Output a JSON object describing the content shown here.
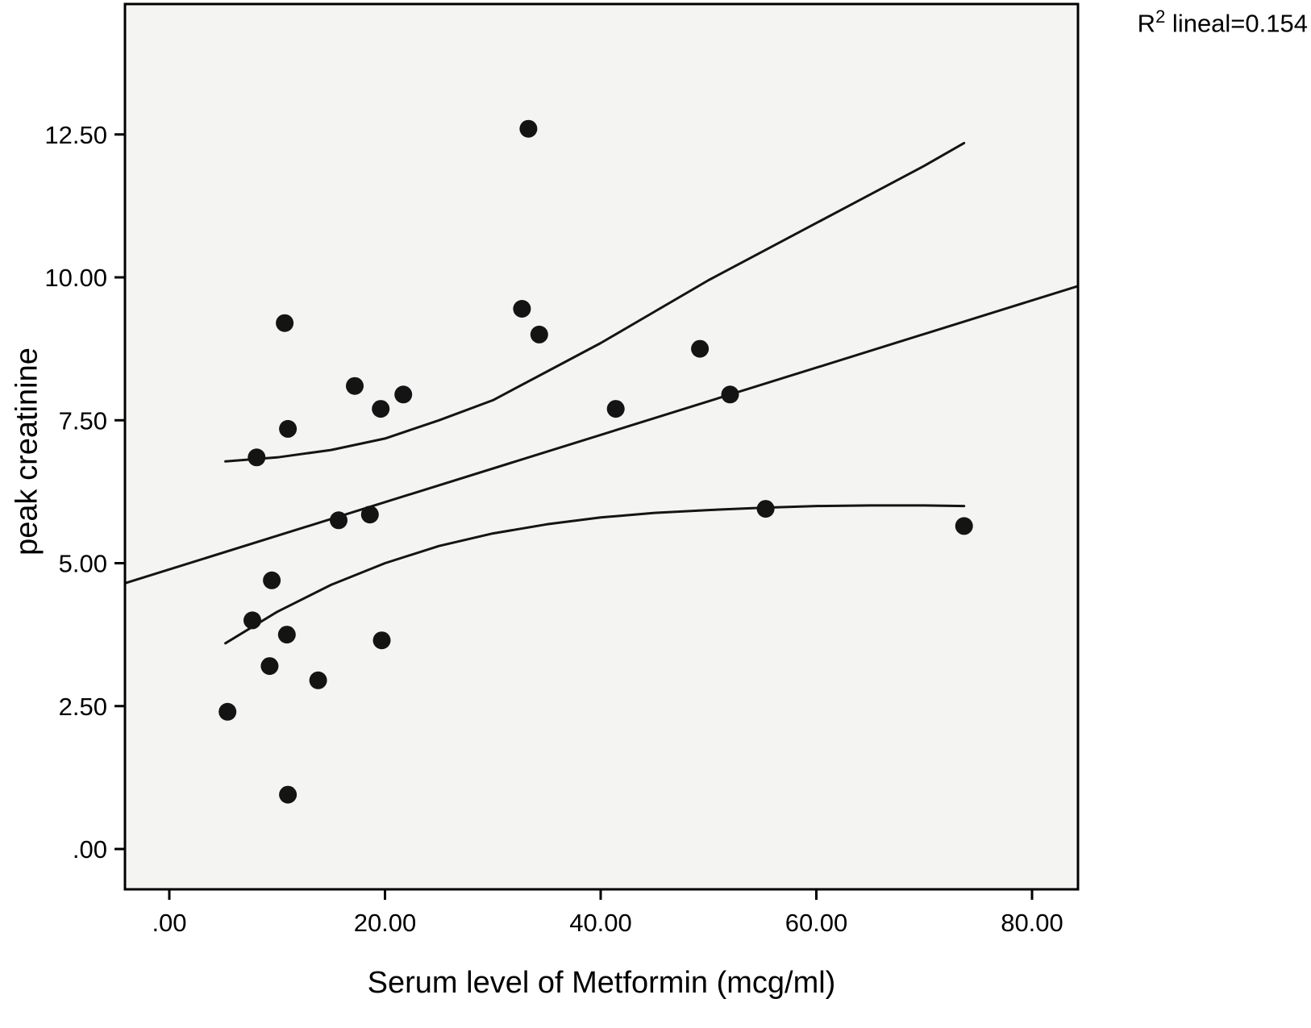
{
  "chart_data": {
    "type": "scatter",
    "xlabel": "Serum level of Metformin  (mcg/ml)",
    "ylabel": "peak creatinine",
    "annotation": {
      "prefix": "R",
      "sup": "2",
      "rest": " lineal=0.154"
    },
    "xlim": [
      -4.1,
      84.3
    ],
    "ylim": [
      -0.7,
      14.8
    ],
    "grid": false,
    "x_ticks": [
      {
        "value": 0,
        "label": ".00"
      },
      {
        "value": 20,
        "label": "20.00"
      },
      {
        "value": 40,
        "label": "40.00"
      },
      {
        "value": 60,
        "label": "60.00"
      },
      {
        "value": 80,
        "label": "80.00"
      }
    ],
    "y_ticks": [
      {
        "value": 12.5,
        "label": "12.50"
      },
      {
        "value": 10.0,
        "label": "10.00"
      },
      {
        "value": 7.5,
        "label": "7.50"
      },
      {
        "value": 5.0,
        "label": "5.00"
      },
      {
        "value": 2.5,
        "label": "2.50"
      },
      {
        "value": 0.0,
        "label": ".00"
      }
    ],
    "points": [
      [
        33.3,
        12.6
      ],
      [
        10.7,
        9.2
      ],
      [
        32.7,
        9.45
      ],
      [
        34.3,
        9.0
      ],
      [
        49.2,
        8.75
      ],
      [
        17.2,
        8.1
      ],
      [
        21.7,
        7.95
      ],
      [
        19.6,
        7.7
      ],
      [
        41.4,
        7.7
      ],
      [
        52.0,
        7.95
      ],
      [
        11.0,
        7.35
      ],
      [
        8.1,
        6.85
      ],
      [
        15.7,
        5.75
      ],
      [
        18.6,
        5.85
      ],
      [
        55.3,
        5.95
      ],
      [
        73.7,
        5.65
      ],
      [
        9.5,
        4.7
      ],
      [
        7.7,
        4.0
      ],
      [
        10.9,
        3.75
      ],
      [
        19.7,
        3.65
      ],
      [
        9.3,
        3.2
      ],
      [
        13.8,
        2.95
      ],
      [
        5.4,
        2.4
      ],
      [
        11.0,
        0.95
      ]
    ],
    "fit_line": {
      "x": [
        -4.1,
        84.3
      ],
      "y": [
        4.65,
        9.85
      ]
    },
    "ci_upper": [
      [
        5.2,
        6.78
      ],
      [
        10,
        6.85
      ],
      [
        15,
        6.98
      ],
      [
        20,
        7.18
      ],
      [
        25,
        7.5
      ],
      [
        30,
        7.85
      ],
      [
        35,
        8.35
      ],
      [
        40,
        8.85
      ],
      [
        45,
        9.4
      ],
      [
        50,
        9.95
      ],
      [
        55,
        10.45
      ],
      [
        60,
        10.95
      ],
      [
        65,
        11.45
      ],
      [
        70,
        11.95
      ],
      [
        73.7,
        12.35
      ]
    ],
    "ci_lower": [
      [
        5.2,
        3.6
      ],
      [
        10,
        4.15
      ],
      [
        15,
        4.62
      ],
      [
        20,
        5.0
      ],
      [
        25,
        5.3
      ],
      [
        30,
        5.52
      ],
      [
        35,
        5.68
      ],
      [
        40,
        5.8
      ],
      [
        45,
        5.88
      ],
      [
        50,
        5.93
      ],
      [
        55,
        5.97
      ],
      [
        60,
        6.0
      ],
      [
        65,
        6.01
      ],
      [
        70,
        6.01
      ],
      [
        73.7,
        6.0
      ]
    ],
    "colors": {
      "point": "#141414",
      "line": "#141414",
      "frame": "#000000",
      "plot_bg": "#f4f4f2",
      "text": "#000000"
    }
  }
}
